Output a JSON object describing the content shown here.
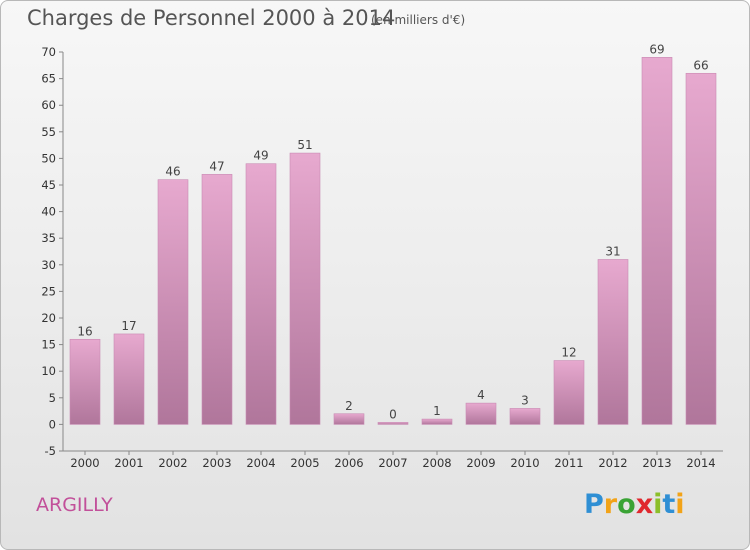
{
  "title": "Charges de Personnel 2000 à 2014",
  "subtitle": "(en milliers d'€)",
  "town": "ARGILLY",
  "logo": {
    "p": "P",
    "r": "r",
    "o": "o",
    "x": "x",
    "i1": "i",
    "t": "t",
    "i2": "i"
  },
  "colors": {
    "bar_top": "#e7a9cf",
    "bar_bottom": "#b0769b",
    "bar_edge": "#c98ab3",
    "town": "#c2509a"
  },
  "chart_data": {
    "type": "bar",
    "title": "Charges de Personnel 2000 à 2014",
    "subtitle": "(en milliers d'€)",
    "categories": [
      "2000",
      "2001",
      "2002",
      "2003",
      "2004",
      "2005",
      "2006",
      "2007",
      "2008",
      "2009",
      "2010",
      "2011",
      "2012",
      "2013",
      "2014"
    ],
    "values": [
      16,
      17,
      46,
      47,
      49,
      51,
      2,
      0,
      1,
      4,
      3,
      12,
      31,
      69,
      66
    ],
    "yticks": [
      -5,
      0,
      5,
      10,
      15,
      20,
      25,
      30,
      35,
      40,
      45,
      50,
      55,
      60,
      65,
      70
    ],
    "ylim": [
      -5,
      70
    ],
    "grid": false,
    "data_labels": true
  }
}
